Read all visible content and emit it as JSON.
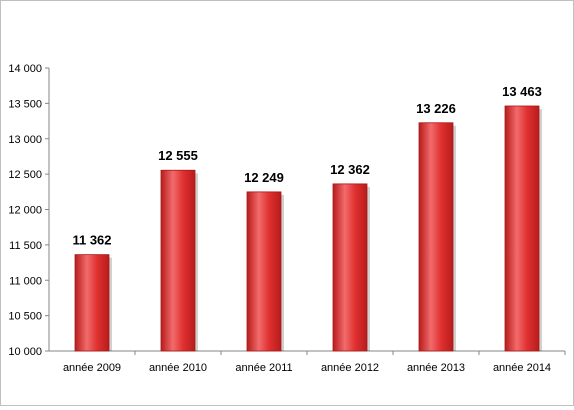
{
  "chart_data": {
    "type": "bar",
    "title": "",
    "xlabel": "",
    "ylabel": "",
    "categories": [
      "année 2009",
      "année 2010",
      "année 2011",
      "année 2012",
      "année 2013",
      "année 2014"
    ],
    "values": [
      11362,
      12555,
      12249,
      12362,
      13226,
      13463
    ],
    "value_labels": [
      "11 362",
      "12 555",
      "12 249",
      "12 362",
      "13 226",
      "13 463"
    ],
    "ylim": [
      10000,
      14000
    ],
    "y_ticks": [
      10000,
      10500,
      11000,
      11500,
      12000,
      12500,
      13000,
      13500,
      14000
    ],
    "y_tick_labels": [
      "10 000",
      "10 500",
      "11 000",
      "11 500",
      "12 000",
      "12 500",
      "13 000",
      "13 500",
      "14 000"
    ],
    "grid": false,
    "legend": "none",
    "bar_color": "#e03030",
    "bar_color_dark": "#b81c1c",
    "bar_color_light": "#f26b6b"
  }
}
